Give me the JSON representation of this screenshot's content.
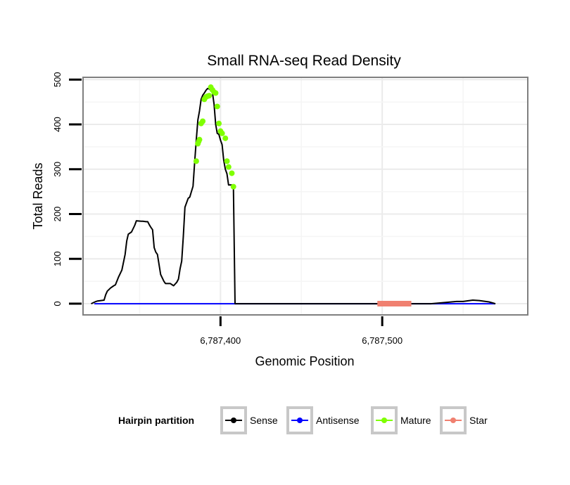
{
  "chart_data": {
    "type": "line",
    "title": "Small RNA-seq Read Density",
    "xlabel": "Genomic Position",
    "ylabel": "Total Reads",
    "xlim": [
      6787315,
      6787590
    ],
    "ylim": [
      -25,
      505
    ],
    "x_ticks": [
      6787400,
      6787500
    ],
    "x_tick_labels": [
      "6,787,400",
      "6,787,500"
    ],
    "y_ticks": [
      0,
      100,
      200,
      300,
      400,
      500
    ],
    "y_tick_labels": [
      "0",
      "100",
      "200",
      "300",
      "400",
      "500"
    ],
    "grid": true,
    "legend": {
      "title": "Hairpin partition",
      "position": "bottom",
      "entries": [
        {
          "name": "Sense",
          "color": "#000000"
        },
        {
          "name": "Antisense",
          "color": "#0000ff"
        },
        {
          "name": "Mature",
          "color": "#7fff00"
        },
        {
          "name": "Star",
          "color": "#f08070"
        }
      ]
    },
    "series": [
      {
        "name": "Sense",
        "color": "#000000",
        "x": [
          6787320,
          6787323,
          6787324,
          6787328,
          6787329,
          6787330,
          6787332,
          6787334,
          6787335,
          6787337,
          6787339,
          6787341,
          6787342,
          6787343,
          6787345,
          6787347,
          6787348,
          6787351,
          6787352,
          6787354,
          6787355,
          6787356,
          6787357,
          6787358,
          6787359,
          6787360,
          6787361,
          6787363,
          6787365,
          6787366,
          6787368,
          6787369,
          6787371,
          6787373,
          6787374,
          6787375,
          6787376,
          6787377,
          6787378,
          6787380,
          6787381,
          6787382,
          6787383,
          6787384,
          6787385,
          6787386,
          6787387,
          6787388,
          6787389,
          6787390,
          6787391,
          6787392,
          6787393,
          6787394,
          6787395,
          6787396,
          6787397,
          6787398,
          6787399,
          6787400,
          6787401,
          6787402,
          6787403,
          6787404,
          6787405,
          6787406,
          6787407,
          6787408,
          6787409,
          6787410,
          6787420,
          6787450,
          6787480,
          6787500,
          6787520,
          6787530,
          6787540,
          6787546,
          6787550,
          6787556,
          6787560,
          6787566,
          6787570
        ],
        "y": [
          0,
          5,
          6,
          8,
          20,
          28,
          35,
          40,
          42,
          60,
          75,
          110,
          140,
          155,
          160,
          175,
          185,
          184,
          184,
          183,
          183,
          176,
          170,
          165,
          125,
          115,
          110,
          65,
          50,
          45,
          45,
          45,
          40,
          48,
          55,
          78,
          95,
          150,
          215,
          235,
          238,
          250,
          262,
          315,
          365,
          410,
          430,
          456,
          465,
          470,
          476,
          480,
          479,
          476,
          471,
          445,
          400,
          380,
          378,
          365,
          355,
          320,
          300,
          290,
          265,
          265,
          265,
          260,
          0,
          0,
          0,
          0,
          0,
          0,
          0,
          0,
          3,
          5,
          5,
          8,
          7,
          4,
          0
        ]
      },
      {
        "name": "Antisense",
        "color": "#0000ff",
        "x": [
          6787322,
          6787570
        ],
        "y": [
          0,
          0
        ]
      },
      {
        "name": "Mature",
        "color": "#7fff00",
        "x": [
          6787385,
          6787386,
          6787386.5,
          6787387,
          6787388,
          6787389,
          6787390,
          6787391,
          6787392,
          6787393,
          6787394,
          6787395,
          6787396,
          6787397,
          6787398,
          6787399,
          6787400,
          6787401,
          6787403,
          6787404,
          6787405,
          6787407,
          6787408
        ],
        "y": [
          318,
          357,
          362,
          366,
          402,
          407,
          456,
          461,
          463,
          464,
          483,
          477,
          472,
          470,
          440,
          402,
          385,
          380,
          369,
          318,
          305,
          291,
          261
        ]
      },
      {
        "name": "Star",
        "color": "#f08070",
        "x": [
          6787497,
          6787518
        ],
        "y": [
          0,
          0
        ]
      }
    ]
  }
}
